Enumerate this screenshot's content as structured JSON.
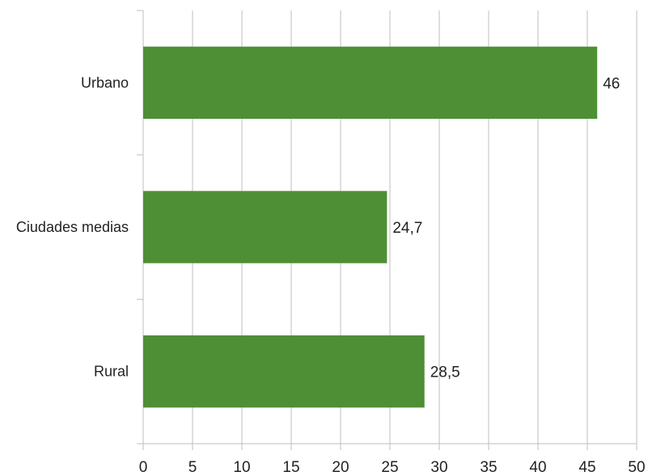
{
  "chart_data": {
    "type": "bar",
    "orientation": "horizontal",
    "categories": [
      "Urbano",
      "Ciudades medias",
      "Rural"
    ],
    "values": [
      46,
      24.7,
      28.5
    ],
    "data_labels": [
      "46",
      "24,7",
      "28,5"
    ],
    "xlim": [
      0,
      50
    ],
    "x_ticks": [
      0,
      5,
      10,
      15,
      20,
      25,
      30,
      35,
      40,
      45,
      50
    ],
    "grid": true,
    "legend": "none",
    "bar_color": "#4e8f36",
    "grid_color": "#bfbfbf",
    "title": "",
    "xlabel": "",
    "ylabel": ""
  }
}
